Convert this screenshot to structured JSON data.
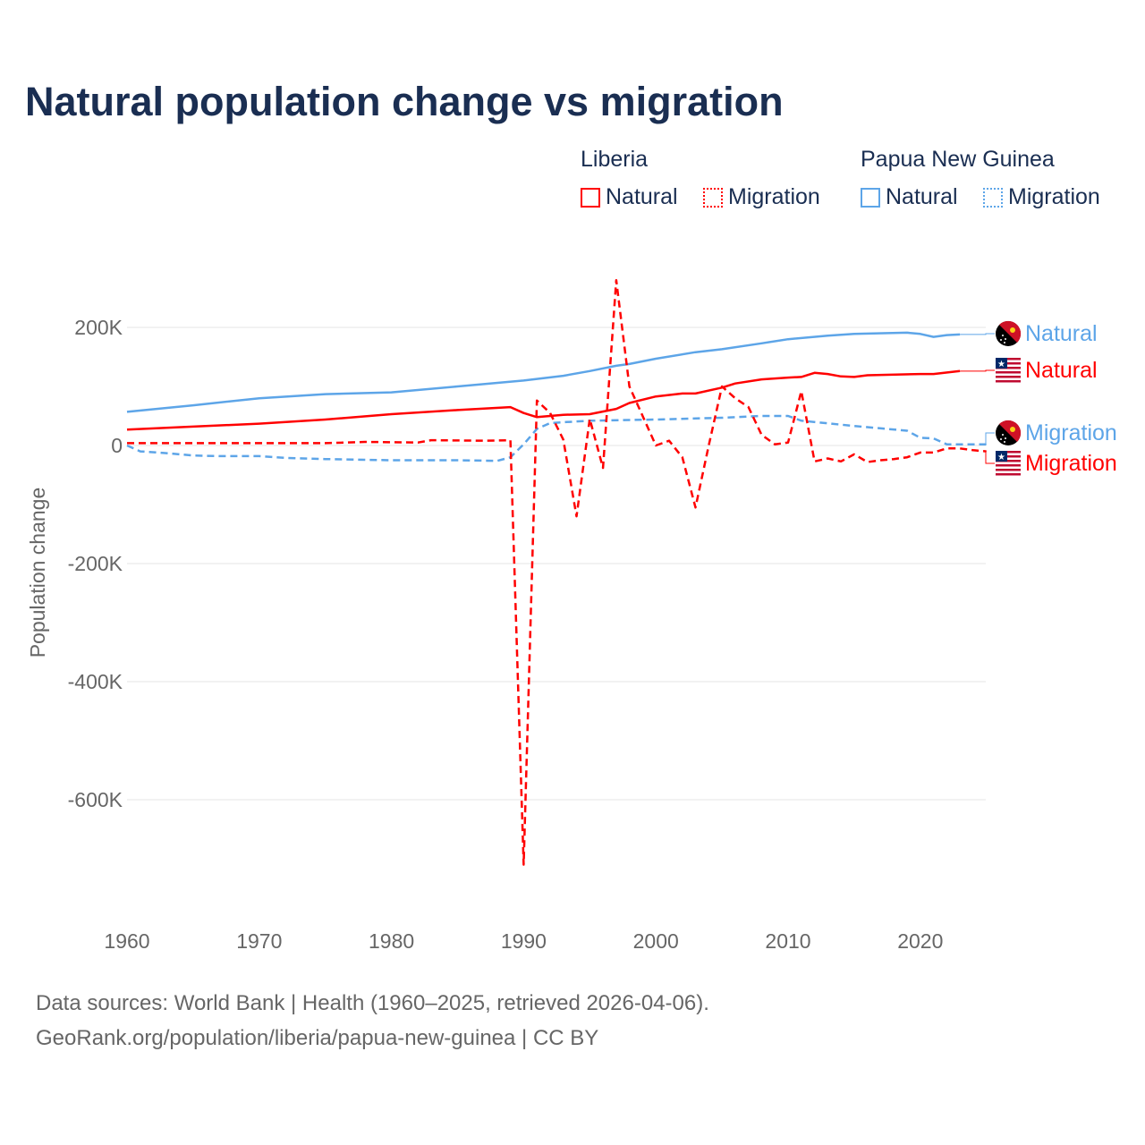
{
  "title": "Natural population change vs migration",
  "legend": {
    "groups": [
      {
        "name": "Liberia",
        "color": "#ff0000",
        "items": [
          "Natural",
          "Migration"
        ]
      },
      {
        "name": "Papua New Guinea",
        "color": "#5da5e8",
        "items": [
          "Natural",
          "Migration"
        ]
      }
    ]
  },
  "footer": {
    "line1": "Data sources: World Bank | Health (1960–2025, retrieved 2026-04-06).",
    "line2": "GeoRank.org/population/liberia/papua-new-guinea | CC BY"
  },
  "chart_data": {
    "type": "line",
    "title": "Natural population change vs migration",
    "xlabel": "",
    "ylabel": "Population change",
    "xlim": [
      1960,
      2025
    ],
    "ylim": [
      -750000,
      330000
    ],
    "xticks": [
      1960,
      1970,
      1980,
      1990,
      2000,
      2010,
      2020
    ],
    "yticks": [
      {
        "v": 200000,
        "label": "200K"
      },
      {
        "v": 0,
        "label": "0"
      },
      {
        "v": -200000,
        "label": "-200K"
      },
      {
        "v": -400000,
        "label": "-400K"
      },
      {
        "v": -600000,
        "label": "-600K"
      }
    ],
    "grid": true,
    "series": [
      {
        "name": "Papua New Guinea Natural",
        "label": "Natural",
        "color": "#5da5e8",
        "dash": false,
        "flag": "png",
        "points": [
          [
            1960,
            57000
          ],
          [
            1965,
            68000
          ],
          [
            1970,
            80000
          ],
          [
            1975,
            87000
          ],
          [
            1980,
            90000
          ],
          [
            1985,
            100000
          ],
          [
            1990,
            110000
          ],
          [
            1993,
            118000
          ],
          [
            1995,
            126000
          ],
          [
            1997,
            135000
          ],
          [
            1998,
            138000
          ],
          [
            2000,
            147000
          ],
          [
            2003,
            158000
          ],
          [
            2005,
            163000
          ],
          [
            2008,
            173000
          ],
          [
            2010,
            180000
          ],
          [
            2013,
            186000
          ],
          [
            2015,
            189000
          ],
          [
            2019,
            191000
          ],
          [
            2020,
            189000
          ],
          [
            2021,
            184000
          ],
          [
            2022,
            187000
          ],
          [
            2023,
            188000
          ]
        ]
      },
      {
        "name": "Liberia Natural",
        "label": "Natural",
        "color": "#ff0000",
        "dash": false,
        "flag": "lr",
        "points": [
          [
            1960,
            27000
          ],
          [
            1965,
            32000
          ],
          [
            1970,
            37000
          ],
          [
            1975,
            44000
          ],
          [
            1980,
            53000
          ],
          [
            1985,
            60000
          ],
          [
            1989,
            65000
          ],
          [
            1990,
            55000
          ],
          [
            1991,
            48000
          ],
          [
            1993,
            52000
          ],
          [
            1995,
            53000
          ],
          [
            1997,
            62000
          ],
          [
            1998,
            72000
          ],
          [
            2000,
            83000
          ],
          [
            2002,
            88000
          ],
          [
            2003,
            88000
          ],
          [
            2005,
            98000
          ],
          [
            2006,
            105000
          ],
          [
            2008,
            112000
          ],
          [
            2010,
            115000
          ],
          [
            2011,
            116000
          ],
          [
            2012,
            123000
          ],
          [
            2013,
            121000
          ],
          [
            2014,
            117000
          ],
          [
            2015,
            116000
          ],
          [
            2016,
            119000
          ],
          [
            2020,
            121000
          ],
          [
            2021,
            121000
          ],
          [
            2023,
            126000
          ]
        ]
      },
      {
        "name": "Papua New Guinea Migration",
        "label": "Migration",
        "color": "#5da5e8",
        "dash": true,
        "flag": "png",
        "points": [
          [
            1960,
            0
          ],
          [
            1961,
            -10000
          ],
          [
            1963,
            -13000
          ],
          [
            1965,
            -17000
          ],
          [
            1967,
            -18000
          ],
          [
            1970,
            -18000
          ],
          [
            1972,
            -21000
          ],
          [
            1975,
            -23000
          ],
          [
            1980,
            -25000
          ],
          [
            1985,
            -25000
          ],
          [
            1988,
            -26000
          ],
          [
            1989,
            -20000
          ],
          [
            1990,
            2000
          ],
          [
            1991,
            28000
          ],
          [
            1992,
            38000
          ],
          [
            1995,
            42000
          ],
          [
            2000,
            44000
          ],
          [
            2005,
            47000
          ],
          [
            2008,
            50000
          ],
          [
            2010,
            50000
          ],
          [
            2011,
            42000
          ],
          [
            2015,
            33000
          ],
          [
            2019,
            25000
          ],
          [
            2020,
            13000
          ],
          [
            2021,
            12000
          ],
          [
            2022,
            2000
          ],
          [
            2025,
            2000
          ]
        ]
      },
      {
        "name": "Liberia Migration",
        "label": "Migration",
        "color": "#ff0000",
        "dash": true,
        "flag": "lr",
        "points": [
          [
            1960,
            4000
          ],
          [
            1965,
            4000
          ],
          [
            1970,
            4000
          ],
          [
            1975,
            4000
          ],
          [
            1978,
            6000
          ],
          [
            1982,
            5000
          ],
          [
            1983,
            9000
          ],
          [
            1987,
            8000
          ],
          [
            1989,
            9000
          ],
          [
            1990,
            -710000
          ],
          [
            1991,
            76000
          ],
          [
            1992,
            55000
          ],
          [
            1993,
            10000
          ],
          [
            1994,
            -120000
          ],
          [
            1995,
            45000
          ],
          [
            1996,
            -38000
          ],
          [
            1997,
            280000
          ],
          [
            1998,
            100000
          ],
          [
            1999,
            50000
          ],
          [
            2000,
            0
          ],
          [
            2001,
            8000
          ],
          [
            2002,
            -20000
          ],
          [
            2003,
            -105000
          ],
          [
            2004,
            0
          ],
          [
            2005,
            100000
          ],
          [
            2006,
            80000
          ],
          [
            2007,
            65000
          ],
          [
            2008,
            18000
          ],
          [
            2009,
            2000
          ],
          [
            2010,
            5000
          ],
          [
            2011,
            92000
          ],
          [
            2012,
            -27000
          ],
          [
            2013,
            -22000
          ],
          [
            2014,
            -27000
          ],
          [
            2015,
            -15000
          ],
          [
            2016,
            -28000
          ],
          [
            2017,
            -25000
          ],
          [
            2018,
            -23000
          ],
          [
            2019,
            -20000
          ],
          [
            2020,
            -12000
          ],
          [
            2021,
            -12000
          ],
          [
            2022,
            -5000
          ],
          [
            2023,
            -5000
          ],
          [
            2024,
            -8000
          ],
          [
            2025,
            -10000
          ]
        ]
      }
    ]
  }
}
